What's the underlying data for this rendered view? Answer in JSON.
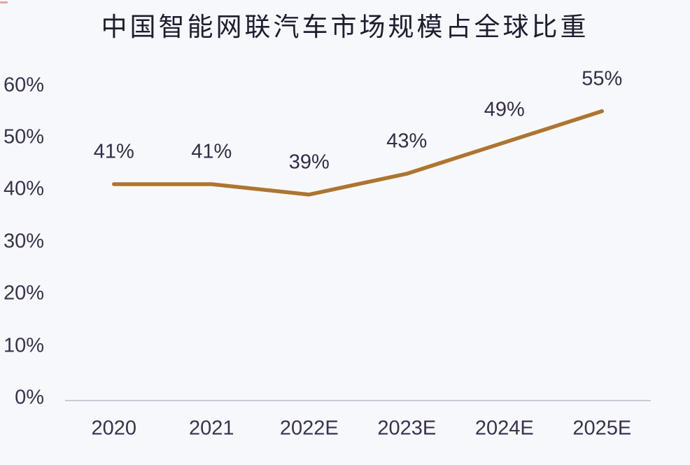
{
  "chart_data": {
    "type": "line",
    "title": "中国智能网联汽车市场规模占全球比重",
    "categories": [
      "2020",
      "2021",
      "2022E",
      "2023E",
      "2024E",
      "2025E"
    ],
    "values": [
      41,
      41,
      39,
      43,
      49,
      55
    ],
    "data_labels": [
      "41%",
      "41%",
      "39%",
      "43%",
      "49%",
      "55%"
    ],
    "y_tick_values": [
      0,
      10,
      20,
      30,
      40,
      50,
      60
    ],
    "y_tick_labels": [
      "0%",
      "10%",
      "20%",
      "30%",
      "40%",
      "50%",
      "60%"
    ],
    "ylim": [
      0,
      60
    ],
    "xlabel": "",
    "ylabel": "",
    "grid": false,
    "legend": false,
    "colors": {
      "line": "#ae7530",
      "axis_line": "#c8ccd5",
      "tick_label": "#38334e",
      "data_label": "#332e49",
      "title": "#1d1d31",
      "background": "#f7f8fb",
      "corner_mark": "#d75a64"
    }
  }
}
